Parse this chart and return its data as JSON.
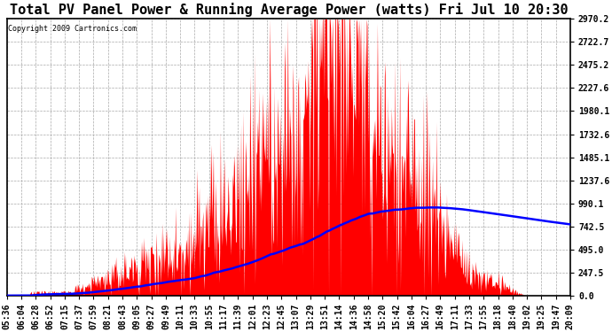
{
  "title": "Total PV Panel Power & Running Average Power (watts) Fri Jul 10 20:30",
  "copyright": "Copyright 2009 Cartronics.com",
  "yticks": [
    0.0,
    247.5,
    495.0,
    742.5,
    990.1,
    1237.6,
    1485.1,
    1732.6,
    1980.1,
    2227.6,
    2475.2,
    2722.7,
    2970.2
  ],
  "ymax": 2970.2,
  "ymin": 0.0,
  "x_labels": [
    "05:36",
    "06:04",
    "06:28",
    "06:52",
    "07:15",
    "07:37",
    "07:59",
    "08:21",
    "08:43",
    "09:05",
    "09:27",
    "09:49",
    "10:11",
    "10:33",
    "10:55",
    "11:17",
    "11:39",
    "12:01",
    "12:23",
    "12:45",
    "13:07",
    "13:29",
    "13:51",
    "14:14",
    "14:36",
    "14:58",
    "15:20",
    "15:42",
    "16:04",
    "16:27",
    "16:49",
    "17:11",
    "17:33",
    "17:55",
    "18:18",
    "18:40",
    "19:02",
    "19:25",
    "19:47",
    "20:09"
  ],
  "background_color": "#ffffff",
  "plot_bg_color": "#ffffff",
  "grid_color": "#aaaaaa",
  "fill_color": "#ff0000",
  "line_color": "#0000ff",
  "title_fontsize": 11,
  "tick_fontsize": 7,
  "n_points": 880
}
